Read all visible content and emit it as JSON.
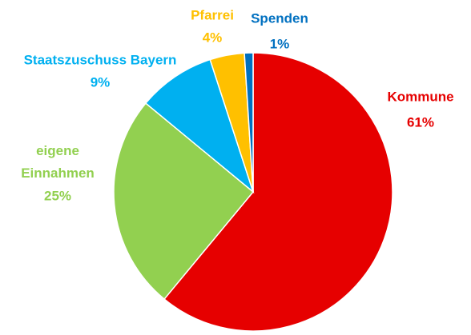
{
  "chart_data": {
    "type": "pie",
    "categories": [
      "Kommune",
      "eigene Einnahmen",
      "Staatszuschuss Bayern",
      "Pfarrei",
      "Spenden"
    ],
    "values": [
      61,
      25,
      9,
      4,
      1
    ],
    "value_labels": [
      "61%",
      "25%",
      "9%",
      "4%",
      "1%"
    ],
    "colors": [
      "#e60000",
      "#92d050",
      "#00b0f0",
      "#ffc000",
      "#0070c0"
    ]
  }
}
